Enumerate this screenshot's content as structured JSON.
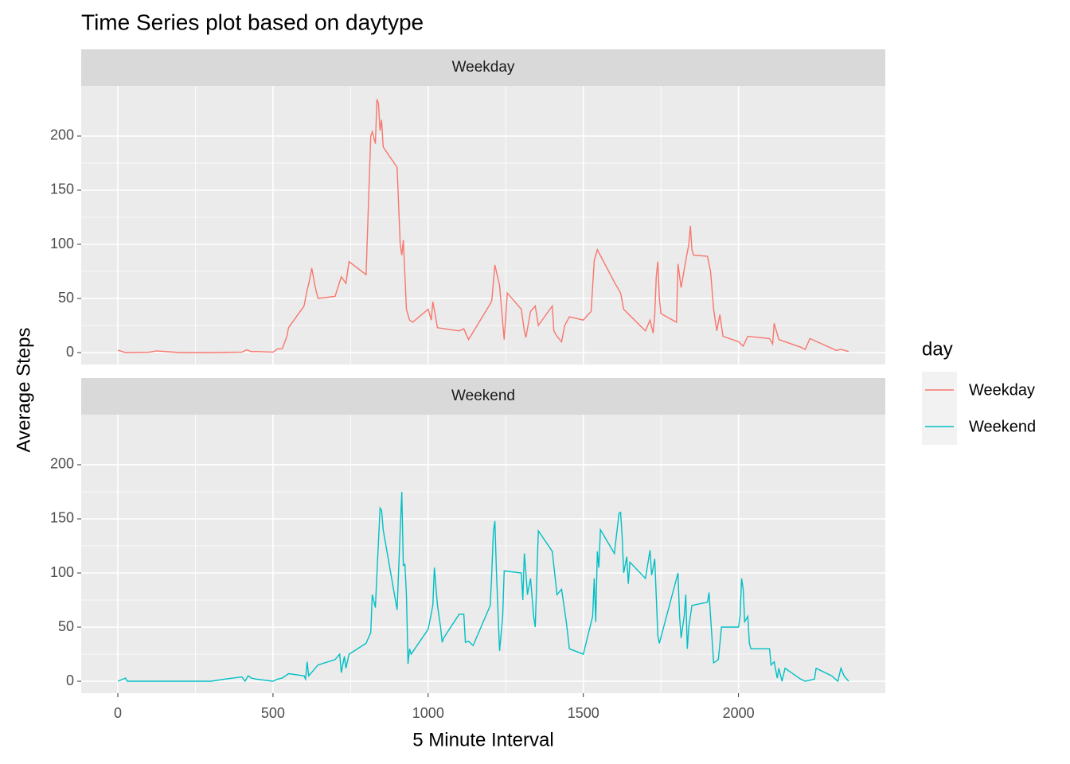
{
  "chart_data": {
    "type": "line",
    "title": "Time Series plot based on daytype",
    "x_label": "5 Minute Interval",
    "y_label": "Average Steps",
    "legend_title": "day",
    "xlim": [
      -118,
      2473
    ],
    "ylim": [
      -11,
      246.3
    ],
    "xticks": [
      0,
      500,
      1000,
      1500,
      2000
    ],
    "yticks": [
      0,
      50,
      100,
      150,
      200
    ],
    "grid": true,
    "facet": true,
    "legend": "right",
    "series": [
      {
        "name": "Weekday",
        "color": "#F8766D",
        "x": [
          0,
          25,
          50,
          100,
          125,
          200,
          300,
          400,
          415,
          430,
          445,
          500,
          515,
          530,
          545,
          550,
          600,
          610,
          615,
          625,
          635,
          645,
          700,
          720,
          735,
          745,
          800,
          815,
          820,
          830,
          835,
          840,
          845,
          850,
          855,
          900,
          910,
          915,
          920,
          930,
          940,
          950,
          1000,
          1010,
          1015,
          1030,
          1100,
          1115,
          1130,
          1200,
          1205,
          1215,
          1230,
          1240,
          1245,
          1255,
          1300,
          1310,
          1315,
          1330,
          1345,
          1355,
          1400,
          1405,
          1415,
          1430,
          1440,
          1455,
          1500,
          1515,
          1525,
          1535,
          1545,
          1600,
          1620,
          1630,
          1700,
          1715,
          1725,
          1730,
          1735,
          1740,
          1745,
          1750,
          1800,
          1805,
          1815,
          1830,
          1840,
          1845,
          1850,
          1855,
          1900,
          1910,
          1920,
          1930,
          1940,
          1950,
          2000,
          2015,
          2030,
          2100,
          2110,
          2115,
          2130,
          2200,
          2215,
          2230,
          2300,
          2315,
          2330,
          2355
        ],
        "values": [
          2.3,
          0,
          0.2,
          0.3,
          1.6,
          0,
          0,
          0.5,
          2.5,
          0.9,
          1,
          0.5,
          3.5,
          3.6,
          15,
          23,
          43,
          58,
          63,
          78,
          62,
          50,
          52,
          70,
          64,
          84,
          72,
          200,
          204,
          193,
          234,
          230,
          205,
          215,
          190,
          171,
          100,
          90,
          104,
          40,
          30,
          28,
          40,
          30,
          47,
          23,
          20,
          22,
          12,
          45,
          48,
          81,
          62,
          28,
          12,
          55,
          40,
          20,
          14,
          38,
          43,
          25,
          43,
          20,
          15,
          10,
          25,
          33,
          30,
          35,
          38,
          85,
          95,
          65,
          55,
          40,
          20,
          30,
          18,
          35,
          70,
          84,
          50,
          36,
          28,
          82,
          60,
          85,
          100,
          117,
          95,
          90,
          89,
          75,
          40,
          20,
          35,
          15,
          10,
          6,
          15,
          13,
          8,
          27,
          12,
          5,
          3,
          13,
          4,
          2,
          3,
          1
        ]
      },
      {
        "name": "Weekend",
        "color": "#00BFC4",
        "x": [
          0,
          25,
          30,
          100,
          200,
          300,
          345,
          400,
          410,
          420,
          430,
          445,
          500,
          515,
          530,
          545,
          550,
          600,
          605,
          610,
          615,
          630,
          645,
          700,
          715,
          720,
          730,
          735,
          745,
          800,
          815,
          820,
          830,
          835,
          845,
          850,
          855,
          900,
          910,
          915,
          920,
          925,
          930,
          935,
          940,
          945,
          1000,
          1015,
          1020,
          1030,
          1040,
          1045,
          1050,
          1100,
          1115,
          1120,
          1130,
          1145,
          1200,
          1205,
          1210,
          1215,
          1220,
          1230,
          1240,
          1245,
          1300,
          1305,
          1310,
          1315,
          1320,
          1330,
          1340,
          1345,
          1355,
          1400,
          1415,
          1430,
          1440,
          1445,
          1455,
          1500,
          1530,
          1535,
          1540,
          1545,
          1550,
          1555,
          1600,
          1615,
          1620,
          1625,
          1630,
          1640,
          1645,
          1650,
          1700,
          1715,
          1720,
          1725,
          1730,
          1740,
          1745,
          1805,
          1810,
          1815,
          1825,
          1830,
          1835,
          1840,
          1850,
          1900,
          1905,
          1910,
          1920,
          1935,
          1945,
          2000,
          2005,
          2010,
          2015,
          2020,
          2030,
          2035,
          2040,
          2100,
          2105,
          2115,
          2125,
          2130,
          2140,
          2150,
          2200,
          2215,
          2230,
          2245,
          2250,
          2300,
          2320,
          2330,
          2340,
          2355
        ],
        "values": [
          0,
          3,
          0,
          0,
          0,
          0,
          2,
          4,
          0,
          5,
          3,
          2,
          0,
          2,
          3,
          6,
          7,
          5,
          2,
          18,
          5,
          10,
          15,
          20,
          25,
          8,
          23,
          12,
          25,
          35,
          45,
          80,
          68,
          100,
          160,
          158,
          140,
          66,
          140,
          175,
          107,
          108,
          80,
          16,
          30,
          25,
          48,
          70,
          105,
          70,
          50,
          36,
          40,
          62,
          62,
          36,
          37,
          33,
          70,
          100,
          138,
          148,
          100,
          28,
          60,
          102,
          100,
          75,
          118,
          100,
          80,
          95,
          60,
          50,
          139,
          120,
          80,
          85,
          65,
          55,
          30,
          25,
          60,
          95,
          55,
          120,
          105,
          140,
          118,
          155,
          156,
          135,
          100,
          115,
          90,
          110,
          95,
          121,
          98,
          105,
          113,
          42,
          35,
          100,
          60,
          40,
          60,
          80,
          30,
          50,
          70,
          73,
          82,
          60,
          17,
          20,
          50,
          50,
          60,
          95,
          85,
          55,
          60,
          35,
          30,
          30,
          15,
          18,
          3,
          12,
          0,
          12,
          2,
          0,
          1,
          2,
          12,
          5,
          0,
          12,
          5,
          0
        ]
      }
    ]
  }
}
